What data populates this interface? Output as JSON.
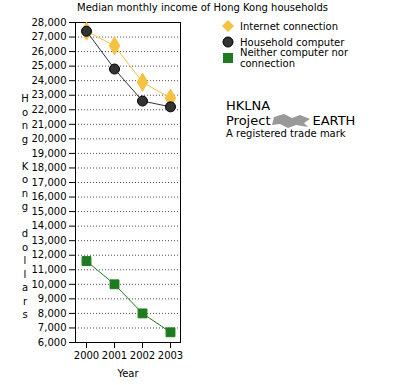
{
  "chart_data": {
    "type": "line",
    "title": "Median monthly income of Hong Kong households",
    "x_label": "Year",
    "y_label": "Hong Kong dollars",
    "categories": [
      "2000",
      "2001",
      "2002",
      "2003"
    ],
    "series": [
      {
        "name": "Internet connection",
        "color": "#f5c242",
        "marker": "diamond",
        "values": [
          27400,
          26400,
          23900,
          22800
        ]
      },
      {
        "name": "Household computer",
        "color": "#333333",
        "marker": "circle",
        "values": [
          27400,
          24800,
          22600,
          22200
        ]
      },
      {
        "name": "Neither computer nor connection",
        "color": "#1e7b1e",
        "marker": "square",
        "values": [
          11600,
          10000,
          8000,
          6700
        ]
      }
    ],
    "ylim": [
      6000,
      28000
    ],
    "yticks": [
      {
        "value": 6000,
        "label": "6,000"
      },
      {
        "value": 7000,
        "label": "7,000"
      },
      {
        "value": 8000,
        "label": "8,000"
      },
      {
        "value": 9000,
        "label": "9,000"
      },
      {
        "value": 10000,
        "label": "10,000"
      },
      {
        "value": 11000,
        "label": "11,000"
      },
      {
        "value": 12000,
        "label": "12,000"
      },
      {
        "value": 13000,
        "label": "13,000"
      },
      {
        "value": 14000,
        "label": "14,000"
      },
      {
        "value": 15000,
        "label": "15,000"
      },
      {
        "value": 16000,
        "label": "16,000"
      },
      {
        "value": 17000,
        "label": "17,000"
      },
      {
        "value": 18000,
        "label": "18,000"
      },
      {
        "value": 19000,
        "label": "19,000"
      },
      {
        "value": 20000,
        "label": "20,000"
      },
      {
        "value": 21000,
        "label": "21,000"
      },
      {
        "value": 22000,
        "label": "22,000"
      },
      {
        "value": 23000,
        "label": "23,000"
      },
      {
        "value": 24000,
        "label": "24,000"
      },
      {
        "value": 25000,
        "label": "25,000"
      },
      {
        "value": 26000,
        "label": "26,000"
      },
      {
        "value": 27000,
        "label": "27,000"
      },
      {
        "value": 28000,
        "label": "28,000"
      }
    ],
    "grid": true,
    "legend": "top-right",
    "annotations": [
      "HKLNA",
      "Project",
      "EARTH",
      "A registered trade mark"
    ]
  }
}
